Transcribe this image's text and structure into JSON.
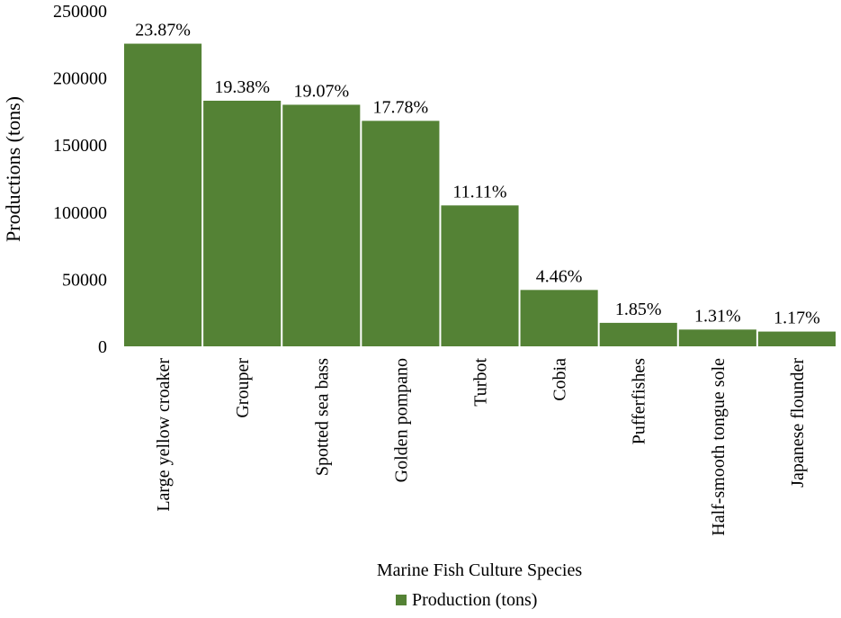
{
  "colors": {
    "bar": "#548235",
    "text": "#000000",
    "background": "#ffffff"
  },
  "chart_data": {
    "type": "bar",
    "title": "",
    "xlabel": "Marine Fish Culture Species",
    "ylabel": "Productions (tons)",
    "ylim": [
      0,
      250000
    ],
    "yticks": [
      "0",
      "50000",
      "100000",
      "150000",
      "200000",
      "250000"
    ],
    "grid": false,
    "legend_position": "bottom",
    "categories": [
      "Large yellow croaker",
      "Grouper",
      "Spotted sea bass",
      "Golden pompano",
      "Turbot",
      "Cobia",
      "Pufferfishes",
      "Half-smooth tongue sole",
      "Japanese flounder"
    ],
    "series": [
      {
        "name": "Production (tons)",
        "values": [
          225500,
          183000,
          180000,
          168000,
          105000,
          42000,
          17500,
          12500,
          11000
        ],
        "labels": [
          "23.87%",
          "19.38%",
          "19.07%",
          "17.78%",
          "11.11%",
          "4.46%",
          "1.85%",
          "1.31%",
          "1.17%"
        ]
      }
    ]
  }
}
